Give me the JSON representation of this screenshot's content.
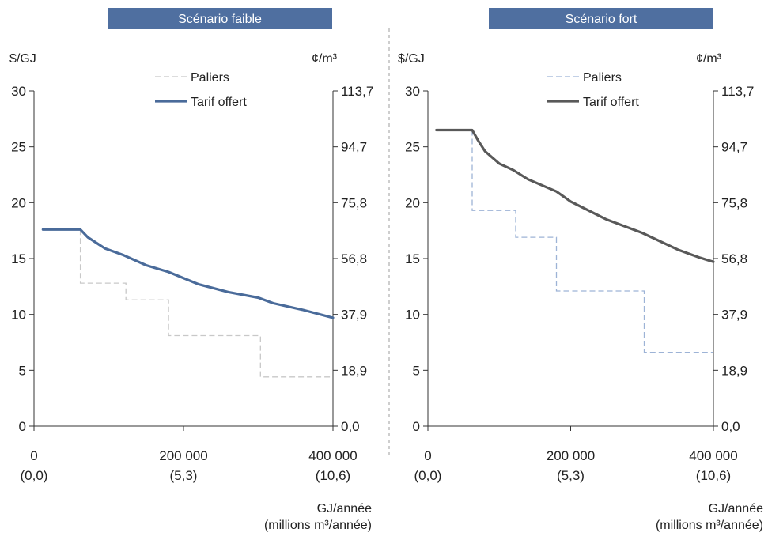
{
  "chart_data": [
    {
      "type": "line",
      "title": "Scénario faible",
      "ylabel": "$/GJ",
      "y2label": "¢/m³",
      "ylim": [
        0,
        30
      ],
      "yticks": [
        0,
        5,
        10,
        15,
        20,
        25,
        30
      ],
      "y2ticks": [
        "0,0",
        "18,9",
        "37,9",
        "56,8",
        "75,8",
        "94,7",
        "113,7"
      ],
      "xlim": [
        0,
        400000
      ],
      "xticks": [
        {
          "value": 0,
          "label": "0",
          "sublabel": "(0,0)"
        },
        {
          "value": 200000,
          "label": "200 000",
          "sublabel": "(5,3)"
        },
        {
          "value": 400000,
          "label": "400 000",
          "sublabel": "(10,6)"
        }
      ],
      "xlabel": "GJ/année",
      "xlabel2": "(millions m³/année)",
      "legend": "top-center",
      "colors": {
        "tarif": "#4a6b9a",
        "paliers": "#c8c8c8",
        "banner": "#4f6fa0"
      },
      "series": [
        {
          "name": "Paliers",
          "style": "dashed-step",
          "x": [
            62000,
            62000,
            123000,
            123000,
            180000,
            180000,
            303000,
            303000,
            400000
          ],
          "y": [
            17.6,
            12.8,
            12.8,
            11.3,
            11.3,
            8.1,
            8.1,
            4.4,
            4.4
          ]
        },
        {
          "name": "Tarif offert",
          "style": "solid",
          "x": [
            12000,
            62000,
            72000,
            95000,
            120000,
            150000,
            180000,
            220000,
            260000,
            300000,
            320000,
            360000,
            400000
          ],
          "y": [
            17.6,
            17.6,
            16.9,
            15.9,
            15.3,
            14.4,
            13.8,
            12.7,
            12.0,
            11.5,
            11.0,
            10.4,
            9.7
          ]
        }
      ]
    },
    {
      "type": "line",
      "title": "Scénario fort",
      "ylabel": "$/GJ",
      "y2label": "¢/m³",
      "ylim": [
        0,
        30
      ],
      "yticks": [
        0,
        5,
        10,
        15,
        20,
        25,
        30
      ],
      "y2ticks": [
        "0,0",
        "18,9",
        "37,9",
        "56,8",
        "75,8",
        "94,7",
        "113,7"
      ],
      "xlim": [
        0,
        400000
      ],
      "xticks": [
        {
          "value": 0,
          "label": "0",
          "sublabel": "(0,0)"
        },
        {
          "value": 200000,
          "label": "200 000",
          "sublabel": "(5,3)"
        },
        {
          "value": 400000,
          "label": "400 000",
          "sublabel": "(10,6)"
        }
      ],
      "xlabel": "GJ/année",
      "xlabel2": "(millions m³/année)",
      "legend": "top-center",
      "colors": {
        "tarif": "#595959",
        "paliers": "#9db3d6",
        "banner": "#4f6fa0"
      },
      "series": [
        {
          "name": "Paliers",
          "style": "dashed-step",
          "x": [
            62000,
            62000,
            123000,
            123000,
            180000,
            180000,
            303000,
            303000,
            400000
          ],
          "y": [
            26.5,
            19.3,
            19.3,
            16.9,
            16.9,
            12.1,
            12.1,
            6.6,
            6.6
          ]
        },
        {
          "name": "Tarif offert",
          "style": "solid",
          "x": [
            12000,
            62000,
            70000,
            80000,
            100000,
            120000,
            140000,
            180000,
            200000,
            250000,
            300000,
            350000,
            380000,
            400000
          ],
          "y": [
            26.5,
            26.5,
            25.6,
            24.6,
            23.5,
            22.9,
            22.1,
            21.0,
            20.1,
            18.5,
            17.3,
            15.8,
            15.1,
            14.7
          ]
        }
      ]
    }
  ]
}
